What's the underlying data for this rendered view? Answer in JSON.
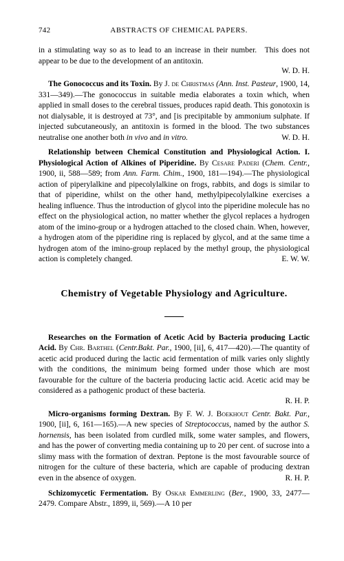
{
  "page": {
    "number": "742",
    "header": "ABSTRACTS OF CHEMICAL PAPERS."
  },
  "intro_para": "in a stimulating way so as to lead to an increase in their number. This does not appear to be due to the development of an antitoxin.",
  "intro_sig": "W. D. H.",
  "entry1": {
    "title": "The Gonococcus and its Toxin.",
    "by": "By J. ",
    "author": "de Christmas",
    "ref_italic": "(Ann. Inst. Pasteur",
    "ref_plain": ", 1900, 14, 331—349).—The gonococcus in suitable media elaborates a toxin which, when applied in small doses to the cerebral tissues, produces rapid death. This gonotoxin is not dialysable, it is destroyed at 73°, and [is precipitable by ammonium sulphate. If injected subcutaneously, an antitoxin is formed in the blood. The two substances neutralise one another both ",
    "ref_italic2": "in vivo",
    "ref_plain2": " and ",
    "ref_italic3": "in vitro.",
    "sig": "W. D. H."
  },
  "entry2": {
    "title": "Relationship between Chemical Constitution and Physiological Action. I. Physiological Action of Alkines of Piperidine.",
    "by": " By ",
    "author": "Cesare Paderi",
    "ref1": " (",
    "ref1_italic": "Chem. Centr.",
    "ref2": ", 1900, ii, 588—589; from ",
    "ref2_italic": "Ann. Farm. Chim.",
    "ref3": ", 1900, 181—194).—The physiological action of piperylalkine and pipecolylalkine on frogs, rabbits, and dogs is similar to that of piperidine, whilst on the other hand, methylpipecolylalkine exercises a healing influence. Thus the introduction of glycol into the piperidine molecule has no effect on the physiological action, no matter whether the glycol replaces a hydrogen atom of the imino-group or a hydrogen attached to the closed chain. When, however, a hydrogen atom of the piperidine ring is replaced by glycol, and at the same time a hydrogen atom of the imino-group replaced by the methyl group, the physiological action is completely changed.",
    "sig": "E. W. W."
  },
  "section": {
    "title": "Chemistry of Vegetable Physiology and Agriculture."
  },
  "entry3": {
    "title": "Researches on the Formation of Acetic Acid by Bacteria producing Lactic Acid.",
    "by": " By ",
    "author": "Chr. Barthel",
    "ref1": " (",
    "ref1_italic": "Centr.Bakt. Par.",
    "ref2": ", 1900, [ii], 6, 417—420).—The quantity of acetic acid produced during the lactic acid fermentation of milk varies only slightly with the conditions, the minimum being formed under those which are most favourable for the culture of the bacteria producing lactic acid. Acetic acid may be considered as a pathogenic product of these bacteria.",
    "sig": "R. H. P."
  },
  "entry4": {
    "title": "Micro-organisms forming Dextran.",
    "by": " By F. W. J. ",
    "author": "Boekhout",
    "ref1_italic": " Centr. Bakt. Par.",
    "ref2": ", 1900, [ii], 6, 161—165).—A new species of ",
    "ref2_italic": "Streptococcus",
    "ref3": ", named by the author ",
    "ref3_italic": "S. hornensis",
    "ref4": ", has been isolated from curdled milk, some water samples, and flowers, and has the power of converting media containing up to 20 per cent. of sucrose into a slimy mass with the formation of dextran. Peptone is the most favourable source of nitrogen for the culture of these bacteria, which are capable of producing dextran even in the absence of oxygen.",
    "sig": "R. H. P."
  },
  "entry5": {
    "title": "Schizomycetic Fermentation.",
    "by": " By ",
    "author": "Oskar Emmerling",
    "ref1": " (",
    "ref1_italic": "Ber.",
    "ref2": ", 1900, 33, 2477—2479. Compare Abstr., 1899, ii, 569).—A 10 per"
  }
}
